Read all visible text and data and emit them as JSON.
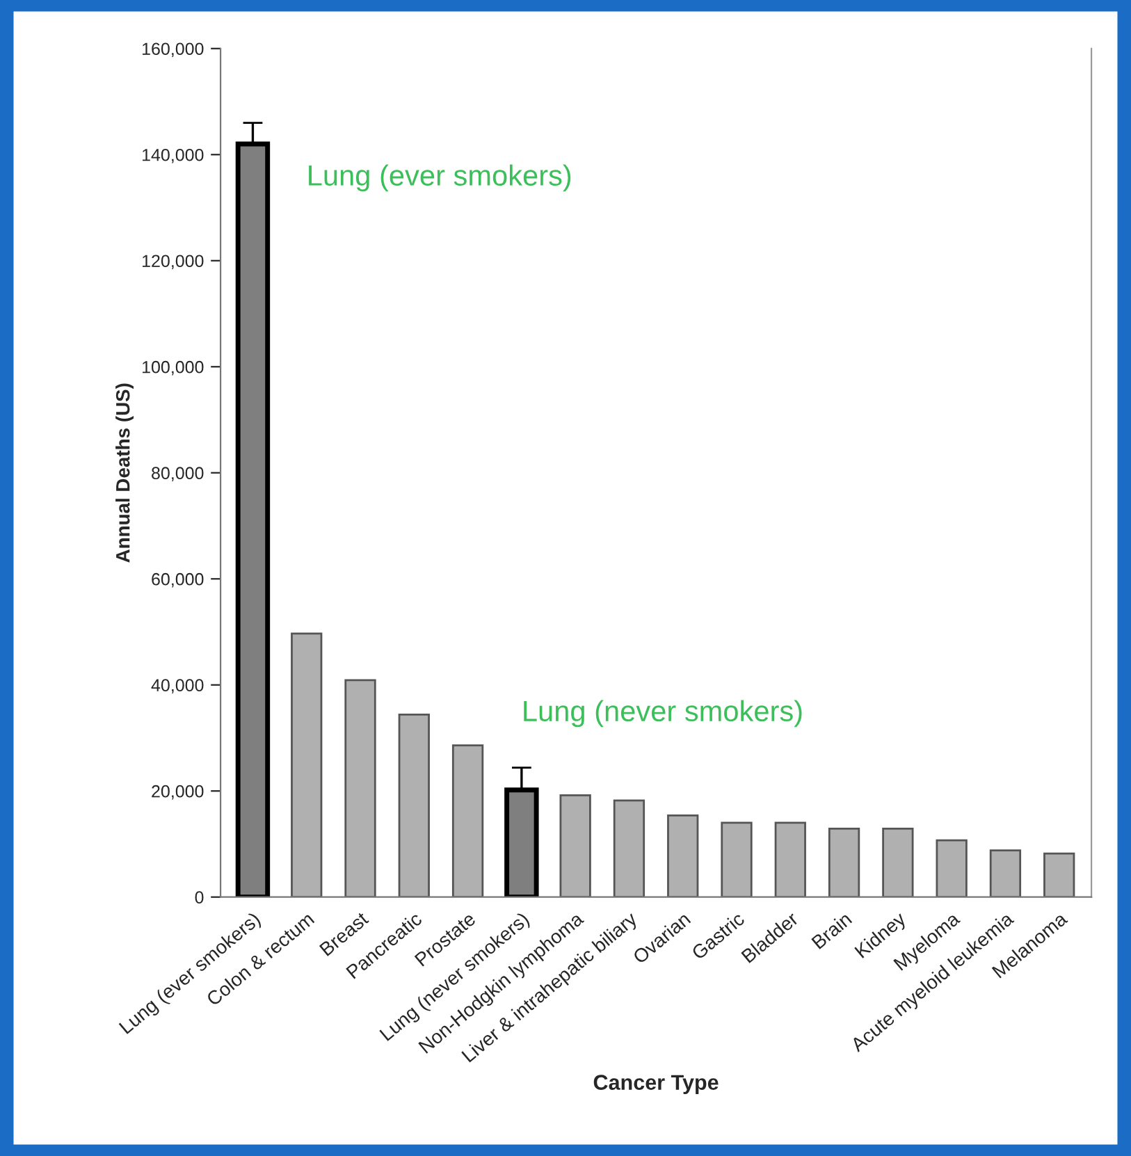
{
  "chart_data": {
    "type": "bar",
    "categories": [
      "Lung (ever smokers)",
      "Colon & rectum",
      "Breast",
      "Pancreatic",
      "Prostate",
      "Lung (never smokers)",
      "Non-Hodgkin lymphoma",
      "Liver & intrahepatic biliary",
      "Ovarian",
      "Gastric",
      "Bladder",
      "Brain",
      "Kidney",
      "Myeloma",
      "Acute myeloid leukemia",
      "Melanoma"
    ],
    "values": [
      142000,
      49700,
      40900,
      34400,
      28600,
      20200,
      19200,
      18200,
      15400,
      14000,
      14000,
      12900,
      12900,
      10700,
      8800,
      8200
    ],
    "colors": [
      "#7f7f7f",
      "#b0b0b0",
      "#b0b0b0",
      "#b0b0b0",
      "#b0b0b0",
      "#7f7f7f",
      "#b0b0b0",
      "#b0b0b0",
      "#b0b0b0",
      "#b0b0b0",
      "#b0b0b0",
      "#b0b0b0",
      "#b0b0b0",
      "#b0b0b0",
      "#b0b0b0",
      "#b0b0b0"
    ],
    "errors": [
      [
        142000,
        146000
      ],
      null,
      null,
      null,
      null,
      [
        20200,
        24400
      ],
      null,
      null,
      null,
      null,
      null,
      null,
      null,
      null,
      null,
      null
    ],
    "xlabel": "Cancer Type",
    "ylabel": "Annual Deaths (US)",
    "ylim": [
      0,
      160000
    ],
    "yticks": [
      {
        "value": 0,
        "label": "0"
      },
      {
        "value": 20000,
        "label": "20,000"
      },
      {
        "value": 40000,
        "label": "40,000"
      },
      {
        "value": 60000,
        "label": "60,000"
      },
      {
        "value": 80000,
        "label": "80,000"
      },
      {
        "value": 100000,
        "label": "100,000"
      },
      {
        "value": 120000,
        "label": "120,000"
      },
      {
        "value": 140000,
        "label": "140,000"
      },
      {
        "value": 160000,
        "label": "160,000"
      }
    ],
    "annotations": [
      {
        "text": "Lung (ever smokers)",
        "x": "Lung (ever smokers)",
        "y": 142000
      },
      {
        "text": "Lung (never smokers)",
        "x": "Lung (never smokers)",
        "y": 20200
      }
    ],
    "grid": false
  }
}
